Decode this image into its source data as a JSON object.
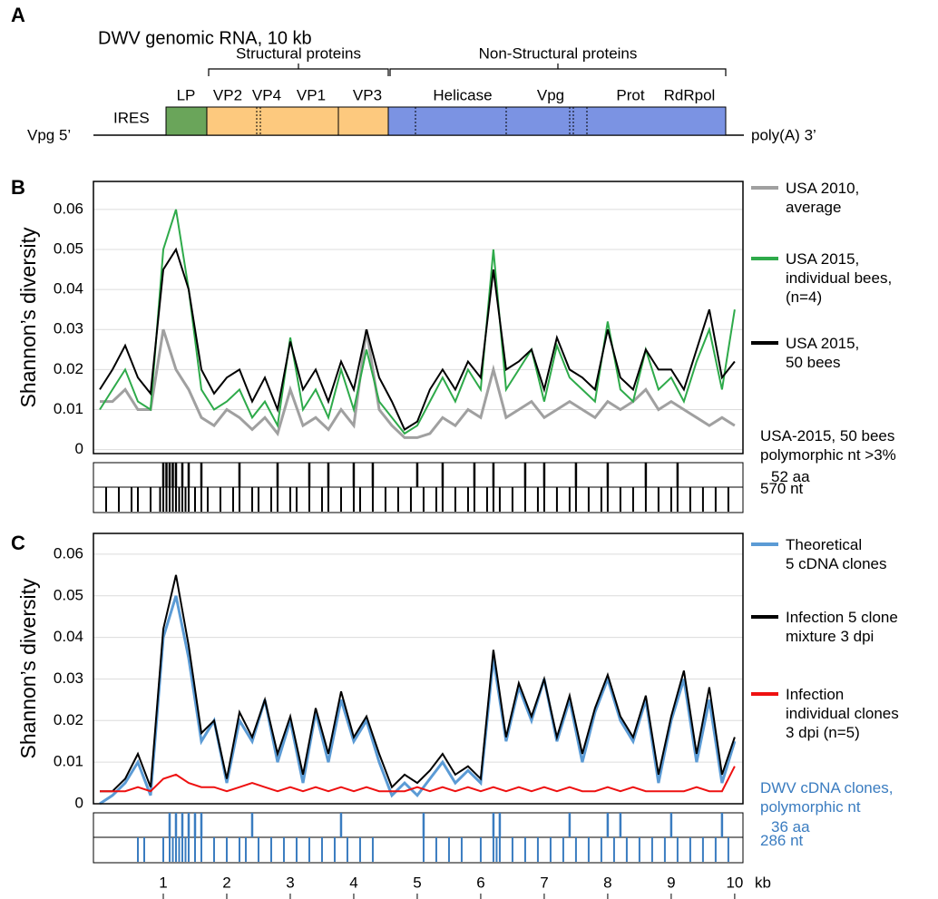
{
  "panel_labels": [
    "A",
    "B",
    "C"
  ],
  "genome": {
    "title": "DWV genomic RNA, 10 kb",
    "groups": [
      "Structural proteins",
      "Non-Structural proteins"
    ],
    "regions": [
      "LP",
      "VP2",
      "VP4",
      "VP1",
      "VP3",
      "Helicase",
      "Vpg",
      "Prot",
      "RdRpol"
    ],
    "left_end": "Vpg 5’",
    "ires": "IRES",
    "right_end": "poly(A) 3’"
  },
  "chart_data": [
    {
      "type": "line",
      "ylabel": "Shannon’s diversity",
      "xlim": [
        -0.1,
        10.13
      ],
      "ylim": [
        -0.001,
        0.067
      ],
      "yticks": [
        0,
        0.01,
        0.02,
        0.03,
        0.04,
        0.05,
        0.06
      ],
      "grid": true,
      "x": [
        0,
        0.2,
        0.4,
        0.6,
        0.8,
        1,
        1.2,
        1.4,
        1.6,
        1.8,
        2,
        2.2,
        2.4,
        2.6,
        2.8,
        3,
        3.2,
        3.4,
        3.6,
        3.8,
        4,
        4.2,
        4.4,
        4.6,
        4.8,
        5,
        5.2,
        5.4,
        5.6,
        5.8,
        6,
        6.2,
        6.4,
        6.6,
        6.8,
        7,
        7.2,
        7.4,
        7.6,
        7.8,
        8,
        8.2,
        8.4,
        8.6,
        8.8,
        9,
        9.2,
        9.4,
        9.6,
        9.8,
        10
      ],
      "series": [
        {
          "name": "USA 2010,\naverage",
          "color": "#a0a0a0",
          "values": [
            0.012,
            0.012,
            0.015,
            0.01,
            0.01,
            0.03,
            0.02,
            0.015,
            0.008,
            0.006,
            0.01,
            0.008,
            0.005,
            0.008,
            0.004,
            0.015,
            0.006,
            0.008,
            0.005,
            0.01,
            0.006,
            0.03,
            0.01,
            0.006,
            0.003,
            0.003,
            0.004,
            0.008,
            0.006,
            0.01,
            0.008,
            0.02,
            0.008,
            0.01,
            0.012,
            0.008,
            0.01,
            0.012,
            0.01,
            0.008,
            0.012,
            0.01,
            0.012,
            0.015,
            0.01,
            0.012,
            0.01,
            0.008,
            0.006,
            0.008,
            0.006
          ]
        },
        {
          "name": "USA 2015,\nindividual bees,\n(n=4)",
          "color": "#2eaa4a",
          "values": [
            0.01,
            0.015,
            0.02,
            0.012,
            0.01,
            0.05,
            0.06,
            0.04,
            0.015,
            0.01,
            0.012,
            0.015,
            0.008,
            0.012,
            0.006,
            0.028,
            0.01,
            0.015,
            0.008,
            0.02,
            0.01,
            0.025,
            0.012,
            0.008,
            0.004,
            0.006,
            0.012,
            0.018,
            0.012,
            0.02,
            0.015,
            0.05,
            0.015,
            0.02,
            0.025,
            0.012,
            0.026,
            0.018,
            0.015,
            0.012,
            0.032,
            0.015,
            0.012,
            0.025,
            0.015,
            0.018,
            0.012,
            0.022,
            0.03,
            0.015,
            0.035
          ]
        },
        {
          "name": "USA 2015,\n50 bees",
          "color": "#000000",
          "values": [
            0.015,
            0.02,
            0.026,
            0.018,
            0.014,
            0.045,
            0.05,
            0.04,
            0.02,
            0.014,
            0.018,
            0.02,
            0.012,
            0.018,
            0.01,
            0.027,
            0.015,
            0.02,
            0.012,
            0.022,
            0.015,
            0.03,
            0.018,
            0.012,
            0.005,
            0.007,
            0.015,
            0.02,
            0.015,
            0.022,
            0.018,
            0.045,
            0.02,
            0.022,
            0.025,
            0.015,
            0.028,
            0.02,
            0.018,
            0.015,
            0.03,
            0.018,
            0.015,
            0.025,
            0.02,
            0.02,
            0.015,
            0.025,
            0.035,
            0.018,
            0.022
          ]
        }
      ],
      "sites_title": "USA-2015, 50 bees\npolymorphic nt  >3%",
      "sites_color": "#000000",
      "sites": [
        {
          "name": "52 aa",
          "positions": [
            1,
            1.05,
            1.1,
            1.15,
            1.2,
            1.3,
            1.4,
            1.6,
            2.2,
            2.8,
            3.3,
            3.6,
            4,
            4.3,
            5,
            5.4,
            5.9,
            6.2,
            6.7,
            7,
            7.5,
            8,
            8.6,
            9.1
          ]
        },
        {
          "name": "570 nt",
          "positions": [
            0.1,
            0.3,
            0.5,
            0.6,
            0.8,
            0.95,
            1,
            1.05,
            1.1,
            1.15,
            1.2,
            1.25,
            1.3,
            1.35,
            1.4,
            1.5,
            1.6,
            1.7,
            1.9,
            2.1,
            2.2,
            2.4,
            2.5,
            2.7,
            2.8,
            3,
            3.1,
            3.3,
            3.5,
            3.6,
            3.8,
            4,
            4.1,
            4.3,
            4.5,
            4.7,
            4.9,
            5.1,
            5.3,
            5.4,
            5.6,
            5.8,
            5.9,
            6.1,
            6.2,
            6.3,
            6.5,
            6.7,
            6.9,
            7,
            7.2,
            7.4,
            7.5,
            7.7,
            7.9,
            8,
            8.2,
            8.4,
            8.6,
            8.8,
            9,
            9.1,
            9.3,
            9.5,
            9.7,
            9.9
          ]
        }
      ]
    },
    {
      "type": "line",
      "ylabel": "Shannon’s diversity",
      "xlim": [
        -0.1,
        10.13
      ],
      "ylim": [
        0,
        0.065
      ],
      "yticks": [
        0,
        0.01,
        0.02,
        0.03,
        0.04,
        0.05,
        0.06
      ],
      "grid": true,
      "xticks": [
        1,
        2,
        3,
        4,
        5,
        6,
        7,
        8,
        9,
        10
      ],
      "xunit": "kb",
      "x": [
        0,
        0.2,
        0.4,
        0.6,
        0.8,
        1,
        1.2,
        1.4,
        1.6,
        1.8,
        2,
        2.2,
        2.4,
        2.6,
        2.8,
        3,
        3.2,
        3.4,
        3.6,
        3.8,
        4,
        4.2,
        4.4,
        4.6,
        4.8,
        5,
        5.2,
        5.4,
        5.6,
        5.8,
        6,
        6.2,
        6.4,
        6.6,
        6.8,
        7,
        7.2,
        7.4,
        7.6,
        7.8,
        8,
        8.2,
        8.4,
        8.6,
        8.8,
        9,
        9.2,
        9.4,
        9.6,
        9.8,
        10
      ],
      "series": [
        {
          "name": "Theoretical\n5 cDNA clones",
          "color": "#5b9bd5",
          "values": [
            0,
            0.002,
            0.005,
            0.01,
            0.002,
            0.04,
            0.05,
            0.035,
            0.015,
            0.02,
            0.005,
            0.02,
            0.015,
            0.025,
            0.01,
            0.02,
            0.005,
            0.022,
            0.01,
            0.025,
            0.015,
            0.02,
            0.01,
            0.002,
            0.005,
            0.002,
            0.006,
            0.01,
            0.005,
            0.008,
            0.005,
            0.035,
            0.015,
            0.028,
            0.02,
            0.03,
            0.015,
            0.025,
            0.01,
            0.022,
            0.03,
            0.02,
            0.015,
            0.025,
            0.005,
            0.02,
            0.03,
            0.01,
            0.025,
            0.005,
            0.015
          ]
        },
        {
          "name": "Infection 5 clone\nmixture 3 dpi",
          "color": "#000000",
          "values": [
            0.003,
            0.003,
            0.006,
            0.012,
            0.004,
            0.042,
            0.055,
            0.038,
            0.017,
            0.02,
            0.006,
            0.022,
            0.016,
            0.025,
            0.012,
            0.021,
            0.007,
            0.023,
            0.012,
            0.027,
            0.016,
            0.021,
            0.012,
            0.004,
            0.007,
            0.005,
            0.008,
            0.012,
            0.007,
            0.009,
            0.006,
            0.037,
            0.016,
            0.029,
            0.021,
            0.03,
            0.016,
            0.026,
            0.012,
            0.023,
            0.031,
            0.021,
            0.016,
            0.026,
            0.007,
            0.021,
            0.032,
            0.012,
            0.028,
            0.007,
            0.016
          ]
        },
        {
          "name": "Infection\nindividual clones\n3 dpi (n=5)",
          "color": "#ee1111",
          "values": [
            0.003,
            0.003,
            0.003,
            0.004,
            0.003,
            0.006,
            0.007,
            0.005,
            0.004,
            0.004,
            0.003,
            0.004,
            0.005,
            0.004,
            0.003,
            0.004,
            0.003,
            0.004,
            0.003,
            0.004,
            0.003,
            0.004,
            0.003,
            0.003,
            0.003,
            0.004,
            0.003,
            0.004,
            0.003,
            0.004,
            0.003,
            0.004,
            0.003,
            0.004,
            0.003,
            0.004,
            0.003,
            0.004,
            0.003,
            0.003,
            0.004,
            0.003,
            0.004,
            0.003,
            0.003,
            0.003,
            0.003,
            0.004,
            0.003,
            0.003,
            0.009
          ]
        }
      ],
      "sites_title": "DWV cDNA clones,\npolymorphic nt",
      "sites_color": "#3a7cc0",
      "sites": [
        {
          "name": "36 aa",
          "positions": [
            1.1,
            1.2,
            1.3,
            1.4,
            1.5,
            1.6,
            2.4,
            3.8,
            5.1,
            6.2,
            6.3,
            7.4,
            8,
            8.2,
            9,
            9.8
          ]
        },
        {
          "name": "286 nt",
          "positions": [
            0.6,
            0.7,
            1,
            1.1,
            1.15,
            1.2,
            1.25,
            1.3,
            1.35,
            1.4,
            1.5,
            1.6,
            1.8,
            2,
            2.2,
            2.3,
            2.5,
            2.7,
            2.9,
            3.1,
            3.3,
            3.5,
            3.7,
            3.9,
            4.1,
            4.3,
            5.1,
            5.3,
            5.5,
            5.7,
            6,
            6.2,
            6.25,
            6.3,
            6.5,
            6.7,
            6.9,
            7.1,
            7.3,
            7.5,
            7.7,
            7.9,
            8.1,
            8.3,
            8.5,
            8.7,
            8.9,
            9.1,
            9.3,
            9.5,
            9.7,
            9.9
          ]
        }
      ]
    }
  ]
}
